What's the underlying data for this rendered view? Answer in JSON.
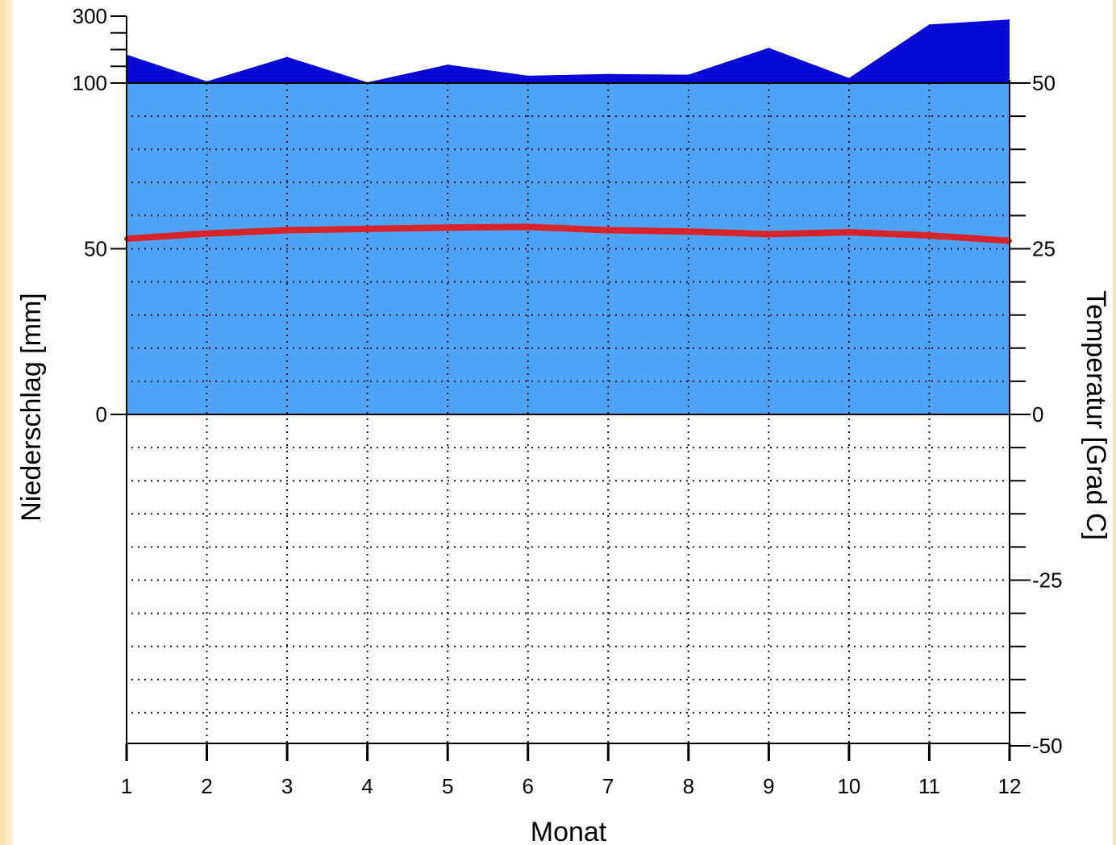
{
  "chart_data": {
    "type": "area",
    "title": "",
    "xlabel": "Monat",
    "ylabel_left": "Niederschlag [mm]",
    "ylabel_right": "Temperatur [Grad C]",
    "categories": [
      1,
      2,
      3,
      4,
      5,
      6,
      7,
      8,
      9,
      10,
      11,
      12
    ],
    "x_tick_labels": [
      "1",
      "2",
      "3",
      "4",
      "5",
      "6",
      "7",
      "8",
      "9",
      "10",
      "11",
      "12"
    ],
    "left_axis": {
      "tick_labels": [
        "300",
        "100",
        "50",
        "0"
      ],
      "scale": "0–100 mm linear, 100–300 mm compressed"
    },
    "right_axis": {
      "tick_labels": [
        "50",
        "25",
        "0",
        "-25",
        "-50"
      ],
      "ylim": [
        -50,
        50
      ]
    },
    "grid": true,
    "series": [
      {
        "kind": "precipitation",
        "values": [
          185,
          105,
          178,
          102,
          155,
          122,
          127,
          125,
          205,
          115,
          275,
          290
        ],
        "colors": {
          "below_100": "#4ea3f7",
          "above_100": "#0a0ad6"
        }
      },
      {
        "kind": "temperature",
        "values": [
          26.5,
          27.3,
          27.8,
          28,
          28.2,
          28.3,
          27.8,
          27.6,
          27.2,
          27.5,
          27,
          26.2
        ],
        "color": "#d8232a"
      }
    ]
  }
}
